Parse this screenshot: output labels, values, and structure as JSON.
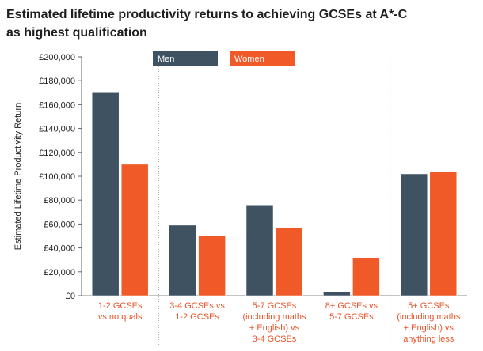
{
  "chart_data": {
    "type": "bar",
    "title": [
      "Estimated lifetime productivity returns to achieving GCSEs at A*-C",
      "as highest qualification"
    ],
    "ylabel": "Estimated Lifetime Productivity Return",
    "xlabel": "",
    "ylim": [
      0,
      200000
    ],
    "yticks": [
      0,
      20000,
      40000,
      60000,
      80000,
      100000,
      120000,
      140000,
      160000,
      180000,
      200000
    ],
    "ytick_labels": [
      "£0",
      "£20,000",
      "£40,000",
      "£60,000",
      "£80,000",
      "£100,000",
      "£120,000",
      "£140,000",
      "£160,000",
      "£180,000",
      "£200,000"
    ],
    "categories": [
      [
        "1-2 GCSEs",
        "vs no quals"
      ],
      [
        "3-4 GCSEs vs",
        "1-2 GCSEs"
      ],
      [
        "5-7 GCSEs",
        "(including maths",
        "+ English) vs",
        "3-4 GCSEs"
      ],
      [
        "8+ GCSEs vs",
        "5-7 GCSEs"
      ],
      [
        "5+ GCSEs",
        "(including maths",
        "+ English) vs",
        "anything less"
      ]
    ],
    "series": [
      {
        "name": "Men",
        "color": "#3f5262",
        "values": [
          170000,
          59000,
          76000,
          3000,
          102000
        ]
      },
      {
        "name": "Women",
        "color": "#f05a28",
        "values": [
          110000,
          50000,
          57000,
          32000,
          104000
        ]
      }
    ],
    "grid": false,
    "legend": "top-center",
    "category_color": "#e8542a"
  }
}
